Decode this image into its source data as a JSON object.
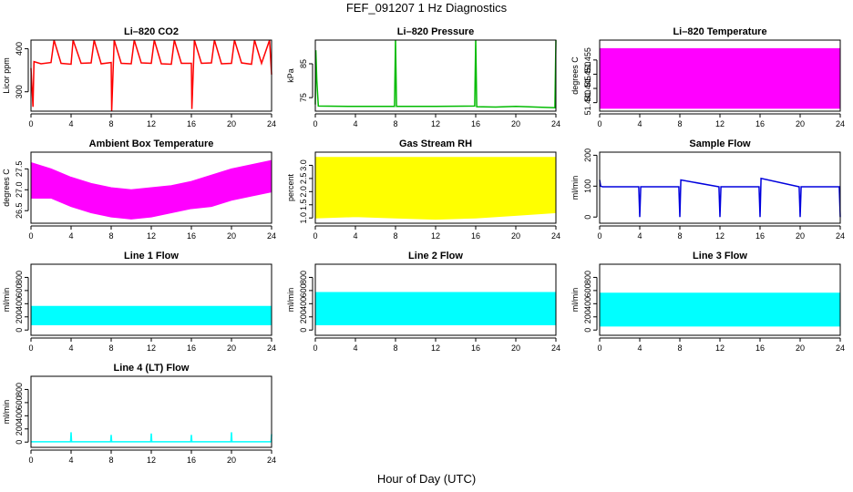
{
  "page": {
    "title": "FEF_091207  1 Hz Diagnostics",
    "xlabel": "Hour of Day (UTC)"
  },
  "chart_data": [
    {
      "type": "line",
      "title": "Li–820 CO2",
      "ylabel": "Licor ppm",
      "color": "#ff0000",
      "xlim": [
        0,
        24
      ],
      "xticks": [
        0,
        4,
        8,
        12,
        16,
        20,
        24
      ],
      "ylim": [
        255,
        420
      ],
      "yticks": [
        300,
        400
      ],
      "series": [
        {
          "x": [
            0,
            0.2,
            0.3,
            1,
            2,
            2.3,
            3,
            4,
            4.2,
            5,
            6,
            6.3,
            7,
            8,
            8.05,
            8.3,
            9,
            10,
            10.3,
            11,
            12,
            12.3,
            13,
            14,
            14.3,
            15,
            16,
            16.05,
            16.3,
            17,
            18,
            18.3,
            19,
            20,
            20.3,
            21,
            22,
            22.3,
            23,
            23.8,
            24
          ],
          "y": [
            355,
            265,
            370,
            365,
            368,
            420,
            366,
            364,
            420,
            366,
            367,
            420,
            365,
            368,
            255,
            420,
            366,
            365,
            420,
            367,
            366,
            420,
            365,
            364,
            420,
            366,
            366,
            260,
            420,
            366,
            367,
            420,
            365,
            366,
            420,
            367,
            364,
            420,
            366,
            420,
            340
          ]
        }
      ]
    },
    {
      "type": "line",
      "title": "Li–820 Pressure",
      "ylabel": "kPa",
      "color": "#00bb00",
      "xlim": [
        0,
        24
      ],
      "xticks": [
        0,
        4,
        8,
        12,
        16,
        20,
        24
      ],
      "ylim": [
        71,
        92
      ],
      "yticks": [
        75,
        85
      ],
      "series": [
        {
          "x": [
            0,
            0.05,
            0.15,
            0.3,
            4,
            7.9,
            8,
            8.1,
            12,
            15.9,
            16,
            16.1,
            18,
            20,
            23.9,
            24
          ],
          "y": [
            73,
            89,
            80,
            72.5,
            72.4,
            72.4,
            92,
            72.4,
            72.4,
            72.5,
            92,
            72.3,
            72.2,
            72.4,
            72,
            92
          ]
        }
      ]
    },
    {
      "type": "area",
      "title": "Li–820 Temperature",
      "ylabel": "degrees C",
      "color": "#ff00ff",
      "xlim": [
        0,
        24
      ],
      "xticks": [
        0,
        4,
        8,
        12,
        16,
        20,
        24
      ],
      "ylim": [
        51.437,
        51.462
      ],
      "yticks": [
        "51.440",
        "51.445",
        "51.450",
        "51.455"
      ],
      "series": [
        {
          "x": [
            0,
            24
          ],
          "low": [
            51.438,
            51.438
          ],
          "high": [
            51.459,
            51.459
          ]
        }
      ]
    },
    {
      "type": "area",
      "title": "Ambient Box Temperature",
      "ylabel": "degrees C",
      "color": "#ff00ff",
      "xlim": [
        0,
        24
      ],
      "xticks": [
        0,
        4,
        8,
        12,
        16,
        20,
        24
      ],
      "ylim": [
        26.2,
        27.9
      ],
      "yticks": [
        "26.5",
        "27.0",
        "27.5"
      ],
      "series": [
        {
          "x": [
            0,
            2,
            4,
            6,
            8,
            10,
            12,
            14,
            16,
            18,
            20,
            22,
            24
          ],
          "low": [
            26.8,
            26.8,
            26.6,
            26.45,
            26.35,
            26.3,
            26.35,
            26.45,
            26.55,
            26.6,
            26.75,
            26.85,
            26.95
          ],
          "high": [
            27.65,
            27.5,
            27.3,
            27.15,
            27.05,
            27.0,
            27.05,
            27.1,
            27.2,
            27.35,
            27.5,
            27.6,
            27.7
          ]
        }
      ]
    },
    {
      "type": "area",
      "title": "Gas Stream RH",
      "ylabel": "percent",
      "color": "#ffff00",
      "xlim": [
        0,
        24
      ],
      "xticks": [
        0,
        4,
        8,
        12,
        16,
        20,
        24
      ],
      "ylim": [
        0.8,
        3.5
      ],
      "yticks": [
        "1.0",
        "1.5",
        "2.0",
        "2.5",
        "3.0"
      ],
      "series": [
        {
          "x": [
            0,
            4,
            8,
            12,
            16,
            20,
            24
          ],
          "low": [
            1.0,
            1.05,
            1.0,
            0.95,
            1.0,
            1.1,
            1.2
          ],
          "high": [
            3.3,
            3.3,
            3.3,
            3.3,
            3.3,
            3.3,
            3.3
          ]
        }
      ]
    },
    {
      "type": "line",
      "title": "Sample Flow",
      "ylabel": "ml/min",
      "color": "#0000dd",
      "xlim": [
        0,
        24
      ],
      "xticks": [
        0,
        4,
        8,
        12,
        16,
        20,
        24
      ],
      "ylim": [
        -20,
        210
      ],
      "yticks": [
        0,
        100,
        200
      ],
      "series": [
        {
          "x": [
            0,
            0.1,
            0.3,
            3.9,
            4,
            4.1,
            7.9,
            8,
            8.1,
            11.9,
            12,
            12.1,
            15.9,
            16,
            16.1,
            19.9,
            20,
            20.1,
            23.9,
            24
          ],
          "y": [
            120,
            100,
            98,
            98,
            0,
            98,
            98,
            0,
            120,
            98,
            0,
            98,
            98,
            0,
            125,
            98,
            0,
            98,
            98,
            0
          ]
        }
      ]
    },
    {
      "type": "area",
      "title": "Line 1 Flow",
      "ylabel": "ml/min",
      "color": "#00ffff",
      "xlim": [
        0,
        24
      ],
      "xticks": [
        0,
        4,
        8,
        12,
        16,
        20,
        24
      ],
      "ylim": [
        -80,
        1000
      ],
      "yticks": [
        0,
        200,
        400,
        600,
        800
      ],
      "series": [
        {
          "x": [
            0,
            24
          ],
          "low": [
            80,
            80
          ],
          "high": [
            360,
            360
          ]
        }
      ]
    },
    {
      "type": "area",
      "title": "Line 2 Flow",
      "ylabel": "ml/min",
      "color": "#00ffff",
      "xlim": [
        0,
        24
      ],
      "xticks": [
        0,
        4,
        8,
        12,
        16,
        20,
        24
      ],
      "ylim": [
        -80,
        1000
      ],
      "yticks": [
        0,
        200,
        400,
        600,
        800
      ],
      "series": [
        {
          "x": [
            0,
            24
          ],
          "low": [
            80,
            80
          ],
          "high": [
            570,
            570
          ]
        }
      ]
    },
    {
      "type": "area",
      "title": "Line 3 Flow",
      "ylabel": "ml/min",
      "color": "#00ffff",
      "xlim": [
        0,
        24
      ],
      "xticks": [
        0,
        4,
        8,
        12,
        16,
        20,
        24
      ],
      "ylim": [
        -80,
        1000
      ],
      "yticks": [
        0,
        200,
        400,
        600,
        800
      ],
      "series": [
        {
          "x": [
            0,
            24
          ],
          "low": [
            60,
            60
          ],
          "high": [
            560,
            560
          ]
        }
      ]
    },
    {
      "type": "line",
      "title": "Line 4 (LT) Flow",
      "ylabel": "ml/min",
      "color": "#00ffff",
      "xlim": [
        0,
        24
      ],
      "xticks": [
        0,
        4,
        8,
        12,
        16,
        20,
        24
      ],
      "ylim": [
        -80,
        1000
      ],
      "yticks": [
        0,
        200,
        400,
        600,
        800
      ],
      "series": [
        {
          "x": [
            0,
            3.95,
            4,
            4.05,
            7.95,
            8,
            8.05,
            11.95,
            12,
            12.05,
            15.95,
            16,
            16.05,
            19.95,
            20,
            20.05,
            23.95,
            24
          ],
          "y": [
            5,
            5,
            150,
            5,
            5,
            110,
            5,
            5,
            130,
            5,
            5,
            110,
            5,
            5,
            150,
            5,
            5,
            120
          ]
        }
      ]
    }
  ]
}
